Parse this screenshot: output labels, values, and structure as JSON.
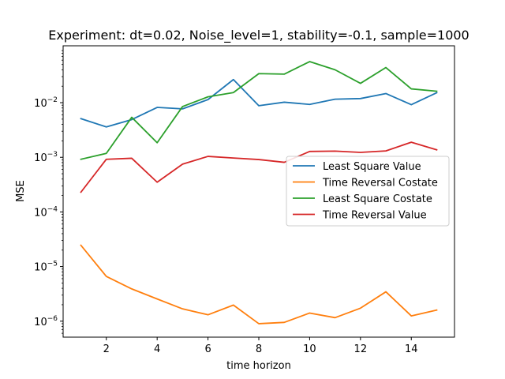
{
  "chart_data": {
    "type": "line",
    "title": "Experiment: dt=0.02, Noise_level=1, stability=-0.1, sample=1000",
    "xlabel": "time horizon",
    "ylabel": "MSE",
    "x": [
      1,
      2,
      3,
      4,
      5,
      6,
      7,
      8,
      9,
      10,
      11,
      12,
      13,
      14,
      15
    ],
    "xlim": [
      0.3,
      15.7
    ],
    "ylim": [
      5.1e-07,
      0.11
    ],
    "yscale": "log",
    "grid": false,
    "legend_placement": "center-right",
    "x_ticks": [
      {
        "value": 2,
        "label": "2"
      },
      {
        "value": 4,
        "label": "4"
      },
      {
        "value": 6,
        "label": "6"
      },
      {
        "value": 8,
        "label": "8"
      },
      {
        "value": 10,
        "label": "10"
      },
      {
        "value": 12,
        "label": "12"
      },
      {
        "value": 14,
        "label": "14"
      }
    ],
    "y_ticks": [
      {
        "value": 1e-06,
        "base": "10",
        "exp": "−6"
      },
      {
        "value": 1e-05,
        "base": "10",
        "exp": "−5"
      },
      {
        "value": 0.0001,
        "base": "10",
        "exp": "−4"
      },
      {
        "value": 0.001,
        "base": "10",
        "exp": "−3"
      },
      {
        "value": 0.01,
        "base": "10",
        "exp": "−2"
      }
    ],
    "series": [
      {
        "name": "Least Square Value",
        "color": "#1f77b4",
        "values": [
          0.0051,
          0.0036,
          0.0049,
          0.0082,
          0.0077,
          0.0114,
          0.0265,
          0.0088,
          0.0102,
          0.0093,
          0.0116,
          0.0119,
          0.0147,
          0.0092,
          0.0152
        ]
      },
      {
        "name": "Time Reversal Costate",
        "color": "#ff7f0e",
        "values": [
          2.45e-05,
          6.6e-06,
          3.9e-06,
          2.55e-06,
          1.68e-06,
          1.31e-06,
          1.97e-06,
          9e-07,
          9.5e-07,
          1.41e-06,
          1.16e-06,
          1.73e-06,
          3.45e-06,
          1.25e-06,
          1.6e-06
        ]
      },
      {
        "name": "Least Square Costate",
        "color": "#2ca02c",
        "values": [
          0.00092,
          0.00118,
          0.0054,
          0.00185,
          0.0085,
          0.0128,
          0.0153,
          0.034,
          0.0333,
          0.0565,
          0.04,
          0.0226,
          0.044,
          0.0179,
          0.0162
        ]
      },
      {
        "name": "Time Reversal Value",
        "color": "#d62728",
        "values": [
          0.00023,
          0.00092,
          0.00096,
          0.00035,
          0.00075,
          0.00104,
          0.00097,
          0.00091,
          0.00081,
          0.00128,
          0.0013,
          0.00123,
          0.00131,
          0.00189,
          0.00137
        ]
      }
    ]
  }
}
